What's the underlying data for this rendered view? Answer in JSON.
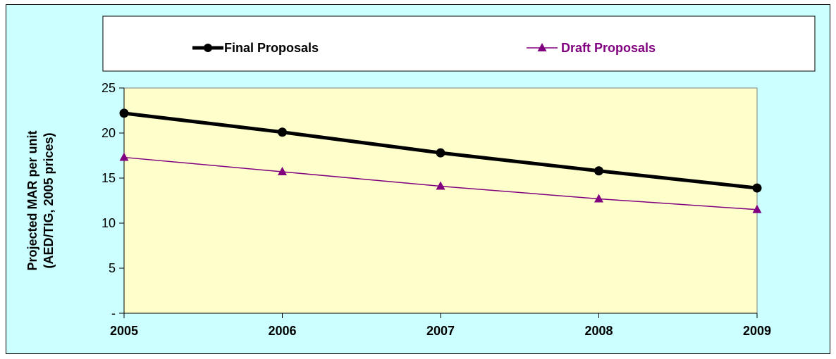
{
  "chart_data": {
    "type": "line",
    "categories": [
      "2005",
      "2006",
      "2007",
      "2008",
      "2009"
    ],
    "series": [
      {
        "name": "Final Proposals",
        "values": [
          22.2,
          20.1,
          17.8,
          15.8,
          13.9
        ],
        "color": "#000000",
        "marker": "circle"
      },
      {
        "name": "Draft Proposals",
        "values": [
          17.3,
          15.7,
          14.1,
          12.7,
          11.5
        ],
        "color": "#800080",
        "marker": "triangle"
      }
    ],
    "ylabel_line1": "Projected MAR per unit",
    "ylabel_line2": "(AED/TIG, 2005 prices)",
    "ylim": [
      0,
      25
    ],
    "yticks": [
      0,
      5,
      10,
      15,
      20,
      25
    ],
    "ytick_labels": [
      "-",
      "5",
      "10",
      "15",
      "20",
      "25"
    ],
    "legend_position": "top",
    "grid": false,
    "plot_background": "#ffffcc",
    "chart_background": "#ccffff"
  }
}
